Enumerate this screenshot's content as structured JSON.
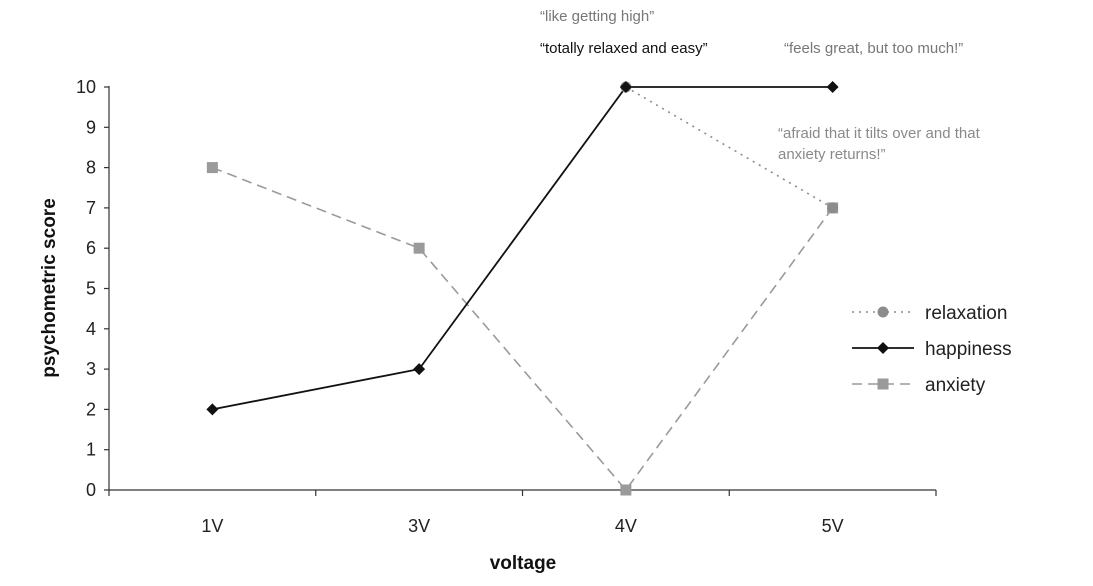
{
  "chart_data": {
    "type": "line",
    "categories": [
      "1V",
      "3V",
      "4V",
      "5V"
    ],
    "xlabel": "voltage",
    "ylabel": "psychometric score",
    "ylim": [
      0,
      10
    ],
    "yticks": [
      0,
      1,
      2,
      3,
      4,
      5,
      6,
      7,
      8,
      9,
      10
    ],
    "grid": false,
    "legend_position": "right",
    "series": [
      {
        "name": "relaxation",
        "values": [
          null,
          null,
          10,
          7
        ],
        "color": "#8c8c8c",
        "style": "dotted",
        "marker": "circle"
      },
      {
        "name": "happiness",
        "values": [
          2,
          3,
          10,
          10
        ],
        "color": "#111111",
        "style": "solid",
        "marker": "diamond"
      },
      {
        "name": "anxiety",
        "values": [
          8,
          6,
          0,
          7
        ],
        "color": "#9a9a9a",
        "style": "dashed",
        "marker": "square"
      }
    ],
    "annotations": [
      {
        "text": "“like getting high”",
        "color": "#777777",
        "anchor_category": "4V"
      },
      {
        "text": "“totally relaxed and easy”",
        "color": "#111111",
        "anchor_category": "4V"
      },
      {
        "text": "“feels great, but too much!”",
        "color": "#777777",
        "anchor_category": "5V"
      },
      {
        "text": "“afraid that it tilts over and that",
        "color": "#8a8a8a",
        "anchor_category": "5V"
      },
      {
        "text": "anxiety returns!”",
        "color": "#8a8a8a",
        "anchor_category": "5V"
      }
    ]
  }
}
